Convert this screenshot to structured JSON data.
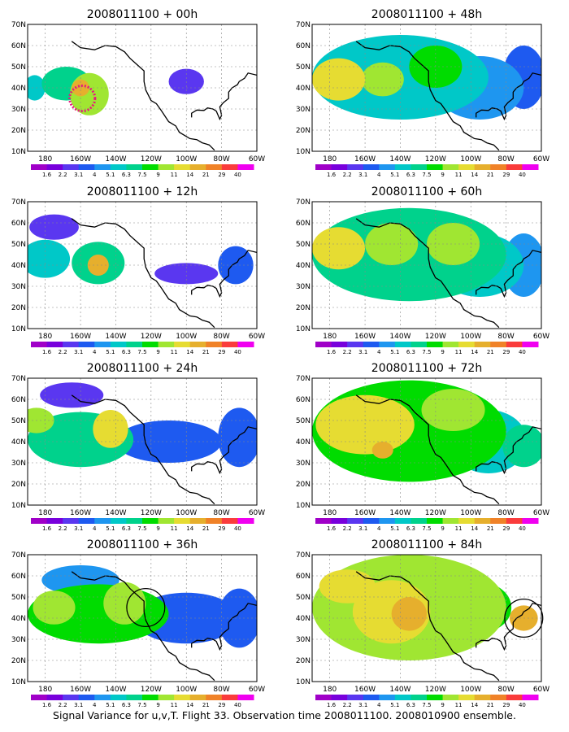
{
  "figure": {
    "caption": "Signal Variance for u,v,T. Flight 33. Observation time 2008011100. 2008010900 ensemble."
  },
  "colorbar": {
    "labels": [
      "1.6",
      "2.2",
      "3.1",
      "4",
      "5.1",
      "6.3",
      "7.5",
      "9",
      "11",
      "14",
      "21",
      "29",
      "40"
    ],
    "colors": [
      "#a000c8",
      "#7800dc",
      "#5a37f0",
      "#1e5af0",
      "#1e96f0",
      "#00c8c8",
      "#00d28c",
      "#00dc00",
      "#a0e632",
      "#e6dc32",
      "#e6af2d",
      "#f08228",
      "#fa3c3c",
      "#f000f0"
    ]
  },
  "axes": {
    "xticks": [
      "180",
      "160W",
      "140W",
      "120W",
      "100W",
      "80W",
      "60W"
    ],
    "yticks": [
      "10N",
      "20N",
      "30N",
      "40N",
      "50N",
      "60N",
      "70N"
    ]
  },
  "chart_data": [
    {
      "type": "heatmap",
      "title": "2008011100 + 00h",
      "lead_hours": 0,
      "xlim": [
        -190,
        -60
      ],
      "ylim": [
        10,
        70
      ],
      "x_unit": "longitude (deg)",
      "y_unit": "latitude (deg)",
      "features": [
        {
          "lon": -168,
          "lat": 42,
          "rx": 14,
          "ry": 8,
          "value": 6.3
        },
        {
          "lon": -155,
          "lat": 37,
          "rx": 11,
          "ry": 10,
          "value": 9
        },
        {
          "lon": -160,
          "lat": 40,
          "rx": 5,
          "ry": 4,
          "value": 14
        },
        {
          "lon": -186,
          "lat": 40,
          "rx": 6,
          "ry": 6,
          "value": 5.1
        },
        {
          "lon": -100,
          "lat": 43,
          "rx": 10,
          "ry": 6,
          "value": 2.2
        }
      ],
      "annotation": {
        "type": "dotted-circle",
        "color": "#e6197d",
        "lon": -159,
        "lat": 35,
        "radius_deg": 6
      }
    },
    {
      "type": "heatmap",
      "title": "2008011100 + 12h",
      "lead_hours": 12,
      "xlim": [
        -190,
        -60
      ],
      "ylim": [
        10,
        70
      ],
      "x_unit": "longitude (deg)",
      "y_unit": "latitude (deg)",
      "features": [
        {
          "lon": -180,
          "lat": 43,
          "rx": 14,
          "ry": 9,
          "value": 5.1
        },
        {
          "lon": -150,
          "lat": 41,
          "rx": 15,
          "ry": 10,
          "value": 6.3
        },
        {
          "lon": -150,
          "lat": 40,
          "rx": 6,
          "ry": 5,
          "value": 14
        },
        {
          "lon": -175,
          "lat": 58,
          "rx": 14,
          "ry": 6,
          "value": 2.2
        },
        {
          "lon": -100,
          "lat": 36,
          "rx": 18,
          "ry": 5,
          "value": 2.2
        },
        {
          "lon": -72,
          "lat": 40,
          "rx": 10,
          "ry": 9,
          "value": 3.1
        }
      ]
    },
    {
      "type": "heatmap",
      "title": "2008011100 + 24h",
      "lead_hours": 24,
      "xlim": [
        -190,
        -60
      ],
      "ylim": [
        10,
        70
      ],
      "x_unit": "longitude (deg)",
      "y_unit": "latitude (deg)",
      "features": [
        {
          "lon": -160,
          "lat": 41,
          "rx": 30,
          "ry": 13,
          "value": 6.3
        },
        {
          "lon": -143,
          "lat": 46,
          "rx": 10,
          "ry": 9,
          "value": 11
        },
        {
          "lon": -185,
          "lat": 50,
          "rx": 10,
          "ry": 6,
          "value": 9
        },
        {
          "lon": -110,
          "lat": 40,
          "rx": 30,
          "ry": 10,
          "value": 3.1
        },
        {
          "lon": -70,
          "lat": 42,
          "rx": 12,
          "ry": 14,
          "value": 3.1
        },
        {
          "lon": -165,
          "lat": 62,
          "rx": 18,
          "ry": 6,
          "value": 2.2
        }
      ]
    },
    {
      "type": "heatmap",
      "title": "2008011100 + 36h",
      "lead_hours": 36,
      "xlim": [
        -190,
        -60
      ],
      "ylim": [
        10,
        70
      ],
      "x_unit": "longitude (deg)",
      "y_unit": "latitude (deg)",
      "features": [
        {
          "lon": -150,
          "lat": 42,
          "rx": 40,
          "ry": 14,
          "value": 7.5
        },
        {
          "lon": -135,
          "lat": 47,
          "rx": 12,
          "ry": 10,
          "value": 9
        },
        {
          "lon": -175,
          "lat": 45,
          "rx": 12,
          "ry": 8,
          "value": 9
        },
        {
          "lon": -160,
          "lat": 58,
          "rx": 22,
          "ry": 7,
          "value": 4
        },
        {
          "lon": -100,
          "lat": 40,
          "rx": 30,
          "ry": 12,
          "value": 3.1
        },
        {
          "lon": -70,
          "lat": 40,
          "rx": 12,
          "ry": 14,
          "value": 3.1
        }
      ],
      "annotation": {
        "type": "circle",
        "color": "#000000",
        "lon": -123,
        "lat": 45,
        "radius_deg": 9
      }
    },
    {
      "type": "heatmap",
      "title": "2008011100 + 48h",
      "lead_hours": 48,
      "xlim": [
        -190,
        -60
      ],
      "ylim": [
        10,
        70
      ],
      "x_unit": "longitude (deg)",
      "y_unit": "latitude (deg)",
      "features": [
        {
          "lon": -140,
          "lat": 45,
          "rx": 50,
          "ry": 20,
          "value": 5.1
        },
        {
          "lon": -175,
          "lat": 44,
          "rx": 15,
          "ry": 10,
          "value": 11
        },
        {
          "lon": -150,
          "lat": 44,
          "rx": 12,
          "ry": 8,
          "value": 9
        },
        {
          "lon": -120,
          "lat": 50,
          "rx": 15,
          "ry": 10,
          "value": 7.5
        },
        {
          "lon": -95,
          "lat": 40,
          "rx": 25,
          "ry": 15,
          "value": 4
        },
        {
          "lon": -70,
          "lat": 45,
          "rx": 12,
          "ry": 15,
          "value": 3.1
        }
      ]
    },
    {
      "type": "heatmap",
      "title": "2008011100 + 60h",
      "lead_hours": 60,
      "xlim": [
        -190,
        -60
      ],
      "ylim": [
        10,
        70
      ],
      "x_unit": "longitude (deg)",
      "y_unit": "latitude (deg)",
      "features": [
        {
          "lon": -135,
          "lat": 45,
          "rx": 55,
          "ry": 22,
          "value": 6.3
        },
        {
          "lon": -175,
          "lat": 48,
          "rx": 15,
          "ry": 10,
          "value": 11
        },
        {
          "lon": -145,
          "lat": 50,
          "rx": 15,
          "ry": 10,
          "value": 9
        },
        {
          "lon": -110,
          "lat": 50,
          "rx": 15,
          "ry": 10,
          "value": 9
        },
        {
          "lon": -95,
          "lat": 40,
          "rx": 25,
          "ry": 15,
          "value": 5.1
        },
        {
          "lon": -70,
          "lat": 40,
          "rx": 12,
          "ry": 15,
          "value": 4
        }
      ]
    },
    {
      "type": "heatmap",
      "title": "2008011100 + 72h",
      "lead_hours": 72,
      "xlim": [
        -190,
        -60
      ],
      "ylim": [
        10,
        70
      ],
      "x_unit": "longitude (deg)",
      "y_unit": "latitude (deg)",
      "features": [
        {
          "lon": -135,
          "lat": 45,
          "rx": 55,
          "ry": 24,
          "value": 7.5
        },
        {
          "lon": -160,
          "lat": 48,
          "rx": 28,
          "ry": 14,
          "value": 11
        },
        {
          "lon": -150,
          "lat": 36,
          "rx": 6,
          "ry": 4,
          "value": 14
        },
        {
          "lon": -110,
          "lat": 55,
          "rx": 18,
          "ry": 10,
          "value": 9
        },
        {
          "lon": -90,
          "lat": 40,
          "rx": 22,
          "ry": 15,
          "value": 5.1
        },
        {
          "lon": -70,
          "lat": 38,
          "rx": 12,
          "ry": 10,
          "value": 6.3
        }
      ]
    },
    {
      "type": "heatmap",
      "title": "2008011100 + 84h",
      "lead_hours": 84,
      "xlim": [
        -190,
        -60
      ],
      "ylim": [
        10,
        70
      ],
      "x_unit": "longitude (deg)",
      "y_unit": "latitude (deg)",
      "features": [
        {
          "lon": -135,
          "lat": 45,
          "rx": 55,
          "ry": 25,
          "value": 9
        },
        {
          "lon": -145,
          "lat": 43,
          "rx": 22,
          "ry": 15,
          "value": 11
        },
        {
          "lon": -135,
          "lat": 42,
          "rx": 10,
          "ry": 8,
          "value": 14
        },
        {
          "lon": -170,
          "lat": 55,
          "rx": 16,
          "ry": 8,
          "value": 11
        },
        {
          "lon": -95,
          "lat": 45,
          "rx": 18,
          "ry": 12,
          "value": 7.5
        },
        {
          "lon": -70,
          "lat": 40,
          "rx": 8,
          "ry": 6,
          "value": 14
        }
      ],
      "annotation": {
        "type": "circle",
        "color": "#000000",
        "lon": -70,
        "lat": 40,
        "radius_deg": 9
      }
    }
  ]
}
